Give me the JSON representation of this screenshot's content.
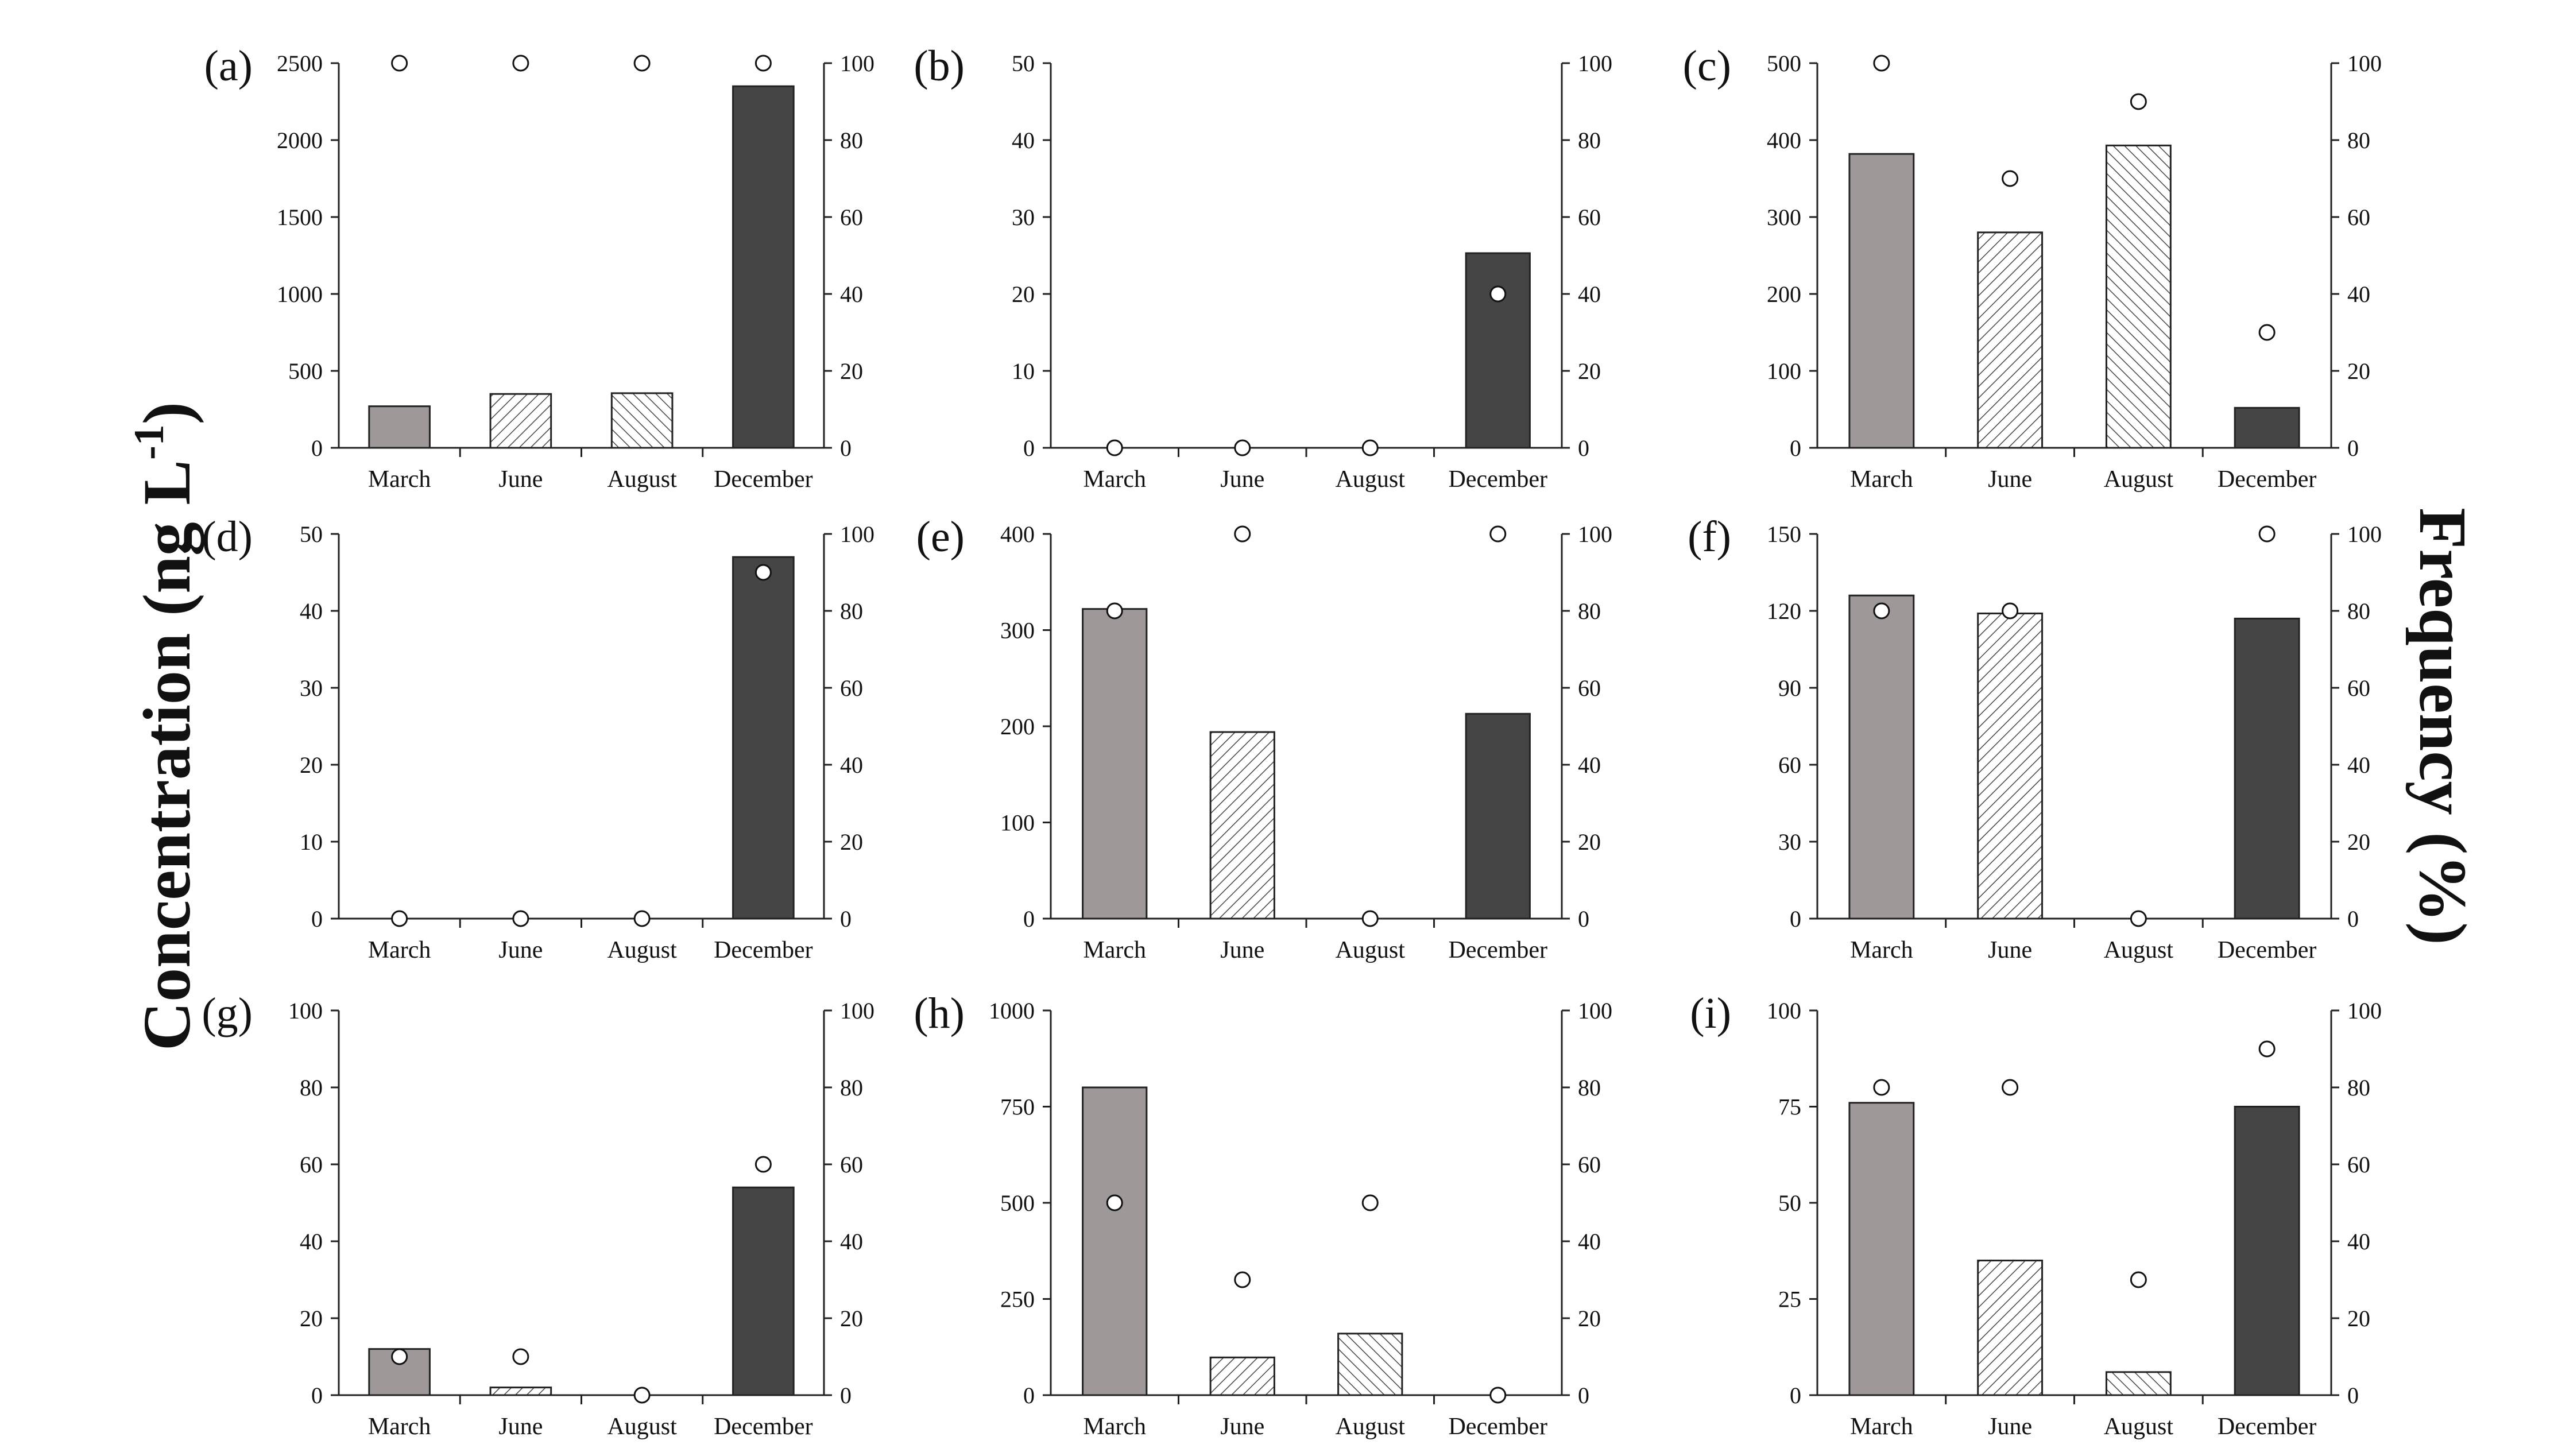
{
  "figure": {
    "left_axis_title": "Concentration (ng L",
    "left_axis_title_sup": "-1",
    "left_axis_title_end": ")",
    "right_axis_title": "Frequency (%)"
  },
  "colors": {
    "march_bar": "#9e9898",
    "december_bar": "#454545",
    "hatch_fill": "#ffffff",
    "hatch_stroke": "#444444",
    "axis": "#222222",
    "marker_fill": "#ffffff",
    "marker_stroke": "#111111"
  },
  "chart_data": [
    {
      "type": "bar",
      "panel": "(a)",
      "categories": [
        "March",
        "June",
        "August",
        "December"
      ],
      "series": [
        {
          "name": "Concentration",
          "values": [
            270,
            350,
            355,
            2350
          ]
        },
        {
          "name": "Frequency",
          "axis": "right",
          "values": [
            100,
            100,
            100,
            100
          ]
        }
      ],
      "ylim": [
        0,
        2500
      ],
      "yticks": [
        0,
        500,
        1000,
        1500,
        2000,
        2500
      ],
      "y2lim": [
        0,
        100
      ],
      "y2ticks": [
        0,
        20,
        40,
        60,
        80,
        100
      ]
    },
    {
      "type": "bar",
      "panel": "(b)",
      "categories": [
        "March",
        "June",
        "August",
        "December"
      ],
      "series": [
        {
          "name": "Concentration",
          "values": [
            0,
            0,
            0,
            25.3
          ]
        },
        {
          "name": "Frequency",
          "axis": "right",
          "values": [
            0,
            0,
            0,
            40
          ]
        }
      ],
      "ylim": [
        0,
        50
      ],
      "yticks": [
        0,
        10,
        20,
        30,
        40,
        50
      ],
      "y2lim": [
        0,
        100
      ],
      "y2ticks": [
        0,
        20,
        40,
        60,
        80,
        100
      ]
    },
    {
      "type": "bar",
      "panel": "(c)",
      "categories": [
        "March",
        "June",
        "August",
        "December"
      ],
      "series": [
        {
          "name": "Concentration",
          "values": [
            382,
            280,
            393,
            52
          ]
        },
        {
          "name": "Frequency",
          "axis": "right",
          "values": [
            100,
            70,
            90,
            30
          ]
        }
      ],
      "ylim": [
        0,
        500
      ],
      "yticks": [
        0,
        100,
        200,
        300,
        400,
        500
      ],
      "y2lim": [
        0,
        100
      ],
      "y2ticks": [
        0,
        20,
        40,
        60,
        80,
        100
      ]
    },
    {
      "type": "bar",
      "panel": "(d)",
      "categories": [
        "March",
        "June",
        "August",
        "December"
      ],
      "series": [
        {
          "name": "Concentration",
          "values": [
            0,
            0,
            0,
            47
          ]
        },
        {
          "name": "Frequency",
          "axis": "right",
          "values": [
            0,
            0,
            0,
            90
          ]
        }
      ],
      "ylim": [
        0,
        50
      ],
      "yticks": [
        0,
        10,
        20,
        30,
        40,
        50
      ],
      "y2lim": [
        0,
        100
      ],
      "y2ticks": [
        0,
        20,
        40,
        60,
        80,
        100
      ]
    },
    {
      "type": "bar",
      "panel": "(e)",
      "categories": [
        "March",
        "June",
        "August",
        "December"
      ],
      "series": [
        {
          "name": "Concentration",
          "values": [
            322,
            194,
            0,
            213
          ]
        },
        {
          "name": "Frequency",
          "axis": "right",
          "values": [
            80,
            100,
            0,
            100
          ]
        }
      ],
      "ylim": [
        0,
        400
      ],
      "yticks": [
        0,
        100,
        200,
        300,
        400
      ],
      "y2lim": [
        0,
        100
      ],
      "y2ticks": [
        0,
        20,
        40,
        60,
        80,
        100
      ]
    },
    {
      "type": "bar",
      "panel": "(f)",
      "categories": [
        "March",
        "June",
        "August",
        "December"
      ],
      "series": [
        {
          "name": "Concentration",
          "values": [
            126,
            119,
            0,
            117
          ]
        },
        {
          "name": "Frequency",
          "axis": "right",
          "values": [
            80,
            80,
            0,
            100
          ]
        }
      ],
      "ylim": [
        0,
        150
      ],
      "yticks": [
        0,
        30,
        60,
        90,
        120,
        150
      ],
      "y2lim": [
        0,
        100
      ],
      "y2ticks": [
        0,
        20,
        40,
        60,
        80,
        100
      ]
    },
    {
      "type": "bar",
      "panel": "(g)",
      "categories": [
        "March",
        "June",
        "August",
        "December"
      ],
      "series": [
        {
          "name": "Concentration",
          "values": [
            12,
            2,
            0,
            54
          ]
        },
        {
          "name": "Frequency",
          "axis": "right",
          "values": [
            10,
            10,
            0,
            60
          ]
        }
      ],
      "ylim": [
        0,
        100
      ],
      "yticks": [
        0,
        20,
        40,
        60,
        80,
        100
      ],
      "y2lim": [
        0,
        100
      ],
      "y2ticks": [
        0,
        20,
        40,
        60,
        80,
        100
      ]
    },
    {
      "type": "bar",
      "panel": "(h)",
      "categories": [
        "March",
        "June",
        "August",
        "December"
      ],
      "series": [
        {
          "name": "Concentration",
          "values": [
            800,
            98,
            160,
            0
          ]
        },
        {
          "name": "Frequency",
          "axis": "right",
          "values": [
            50,
            30,
            50,
            0
          ]
        }
      ],
      "ylim": [
        0,
        1000
      ],
      "yticks": [
        0,
        250,
        500,
        750,
        1000
      ],
      "y2lim": [
        0,
        100
      ],
      "y2ticks": [
        0,
        20,
        40,
        60,
        80,
        100
      ]
    },
    {
      "type": "bar",
      "panel": "(i)",
      "categories": [
        "March",
        "June",
        "August",
        "December"
      ],
      "series": [
        {
          "name": "Concentration",
          "values": [
            76,
            35,
            6,
            75
          ]
        },
        {
          "name": "Frequency",
          "axis": "right",
          "values": [
            80,
            80,
            30,
            90
          ]
        }
      ],
      "ylim": [
        0,
        100
      ],
      "yticks": [
        0,
        25,
        50,
        75,
        100
      ],
      "y2lim": [
        0,
        100
      ],
      "y2ticks": [
        0,
        20,
        40,
        60,
        80,
        100
      ]
    }
  ]
}
